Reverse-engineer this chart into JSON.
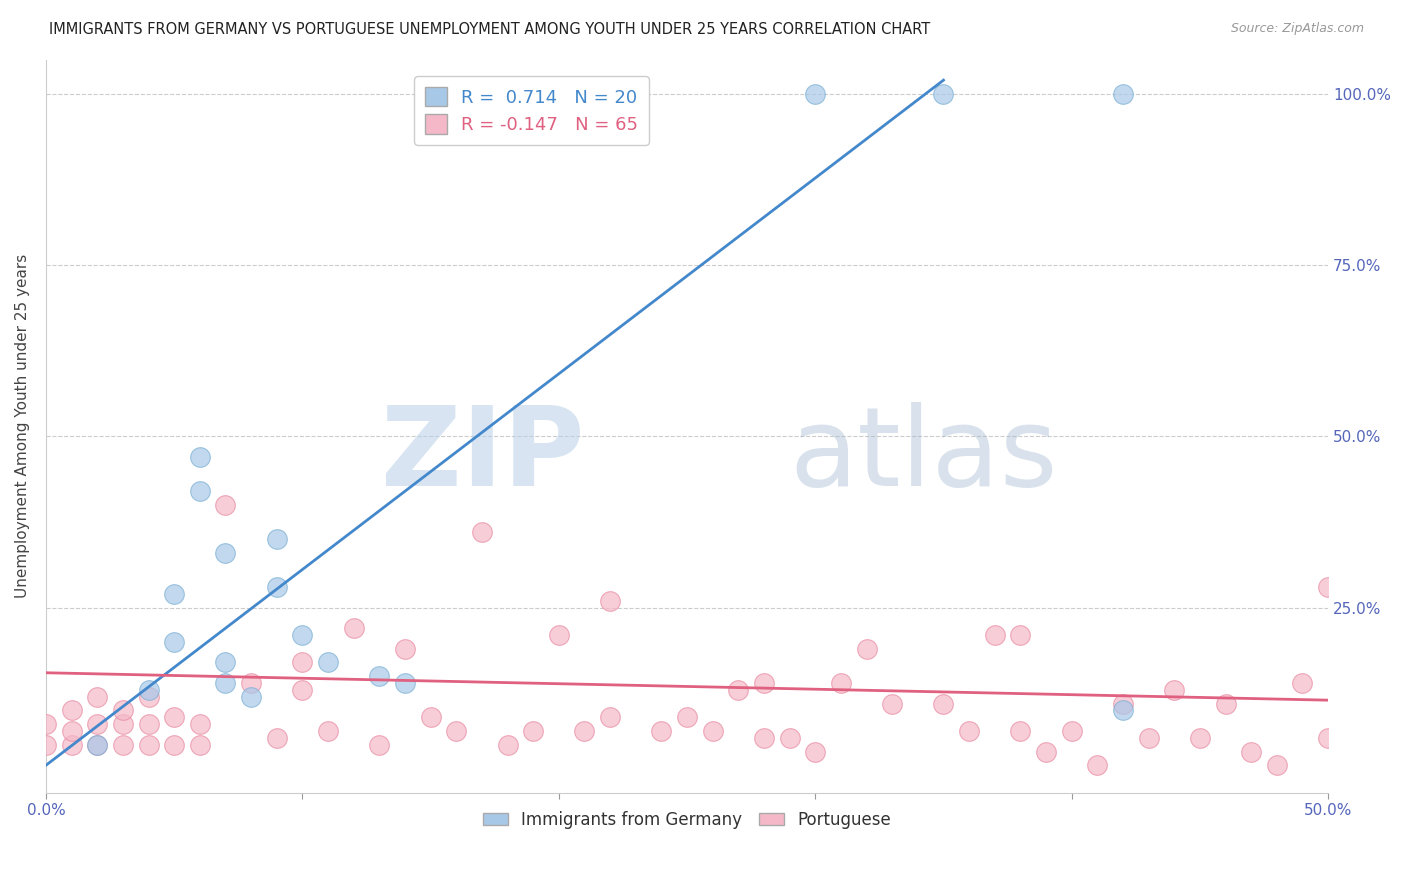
{
  "title": "IMMIGRANTS FROM GERMANY VS PORTUGUESE UNEMPLOYMENT AMONG YOUTH UNDER 25 YEARS CORRELATION CHART",
  "source": "Source: ZipAtlas.com",
  "ylabel": "Unemployment Among Youth under 25 years",
  "xlim": [
    0.0,
    0.5
  ],
  "ylim": [
    -0.02,
    1.05
  ],
  "xticks": [
    0.0,
    0.1,
    0.2,
    0.3,
    0.4,
    0.5
  ],
  "yticks": [
    0.25,
    0.5,
    0.75,
    1.0
  ],
  "ytick_labels_right": [
    "25.0%",
    "50.0%",
    "75.0%",
    "100.0%"
  ],
  "xtick_labels": [
    "0.0%",
    "",
    "",
    "",
    "",
    "50.0%"
  ],
  "blue_color": "#a8c8e8",
  "blue_edge": "#7aafd4",
  "blue_line_color": "#4488cc",
  "pink_color": "#f5b8c8",
  "pink_edge": "#e88aa0",
  "pink_line_color": "#e06080",
  "R_blue": 0.714,
  "N_blue": 20,
  "R_pink": -0.147,
  "N_pink": 65,
  "legend_label_blue": "Immigrants from Germany",
  "legend_label_pink": "Portuguese",
  "watermark_zip": "ZIP",
  "watermark_atlas": "atlas",
  "background_color": "#ffffff",
  "blue_line_x0": 0.0,
  "blue_line_y0": 0.02,
  "blue_line_x1": 0.35,
  "blue_line_y1": 1.02,
  "pink_line_x0": 0.0,
  "pink_line_y0": 0.155,
  "pink_line_x1": 0.5,
  "pink_line_y1": 0.115,
  "blue_points_x": [
    0.02,
    0.04,
    0.05,
    0.05,
    0.06,
    0.06,
    0.07,
    0.07,
    0.08,
    0.09,
    0.1,
    0.11,
    0.13,
    0.14,
    0.3,
    0.35,
    0.42,
    0.42,
    0.07,
    0.09
  ],
  "blue_points_y": [
    0.05,
    0.13,
    0.2,
    0.27,
    0.42,
    0.47,
    0.14,
    0.17,
    0.12,
    0.35,
    0.21,
    0.17,
    0.15,
    0.14,
    1.0,
    1.0,
    1.0,
    0.1,
    0.33,
    0.28
  ],
  "pink_points_x": [
    0.0,
    0.0,
    0.01,
    0.01,
    0.01,
    0.02,
    0.02,
    0.02,
    0.03,
    0.03,
    0.03,
    0.04,
    0.04,
    0.04,
    0.05,
    0.05,
    0.06,
    0.06,
    0.07,
    0.08,
    0.09,
    0.1,
    0.1,
    0.11,
    0.12,
    0.13,
    0.14,
    0.15,
    0.16,
    0.17,
    0.18,
    0.19,
    0.2,
    0.21,
    0.22,
    0.22,
    0.24,
    0.25,
    0.26,
    0.27,
    0.28,
    0.29,
    0.3,
    0.31,
    0.32,
    0.33,
    0.35,
    0.36,
    0.37,
    0.38,
    0.39,
    0.4,
    0.41,
    0.42,
    0.43,
    0.44,
    0.45,
    0.46,
    0.47,
    0.48,
    0.49,
    0.5,
    0.28,
    0.38,
    0.5
  ],
  "pink_points_y": [
    0.05,
    0.08,
    0.05,
    0.07,
    0.1,
    0.05,
    0.08,
    0.12,
    0.05,
    0.08,
    0.1,
    0.05,
    0.08,
    0.12,
    0.05,
    0.09,
    0.05,
    0.08,
    0.4,
    0.14,
    0.06,
    0.13,
    0.17,
    0.07,
    0.22,
    0.05,
    0.19,
    0.09,
    0.07,
    0.36,
    0.05,
    0.07,
    0.21,
    0.07,
    0.09,
    0.26,
    0.07,
    0.09,
    0.07,
    0.13,
    0.14,
    0.06,
    0.04,
    0.14,
    0.19,
    0.11,
    0.11,
    0.07,
    0.21,
    0.07,
    0.04,
    0.07,
    0.02,
    0.11,
    0.06,
    0.13,
    0.06,
    0.11,
    0.04,
    0.02,
    0.14,
    0.28,
    0.06,
    0.21,
    0.06
  ]
}
